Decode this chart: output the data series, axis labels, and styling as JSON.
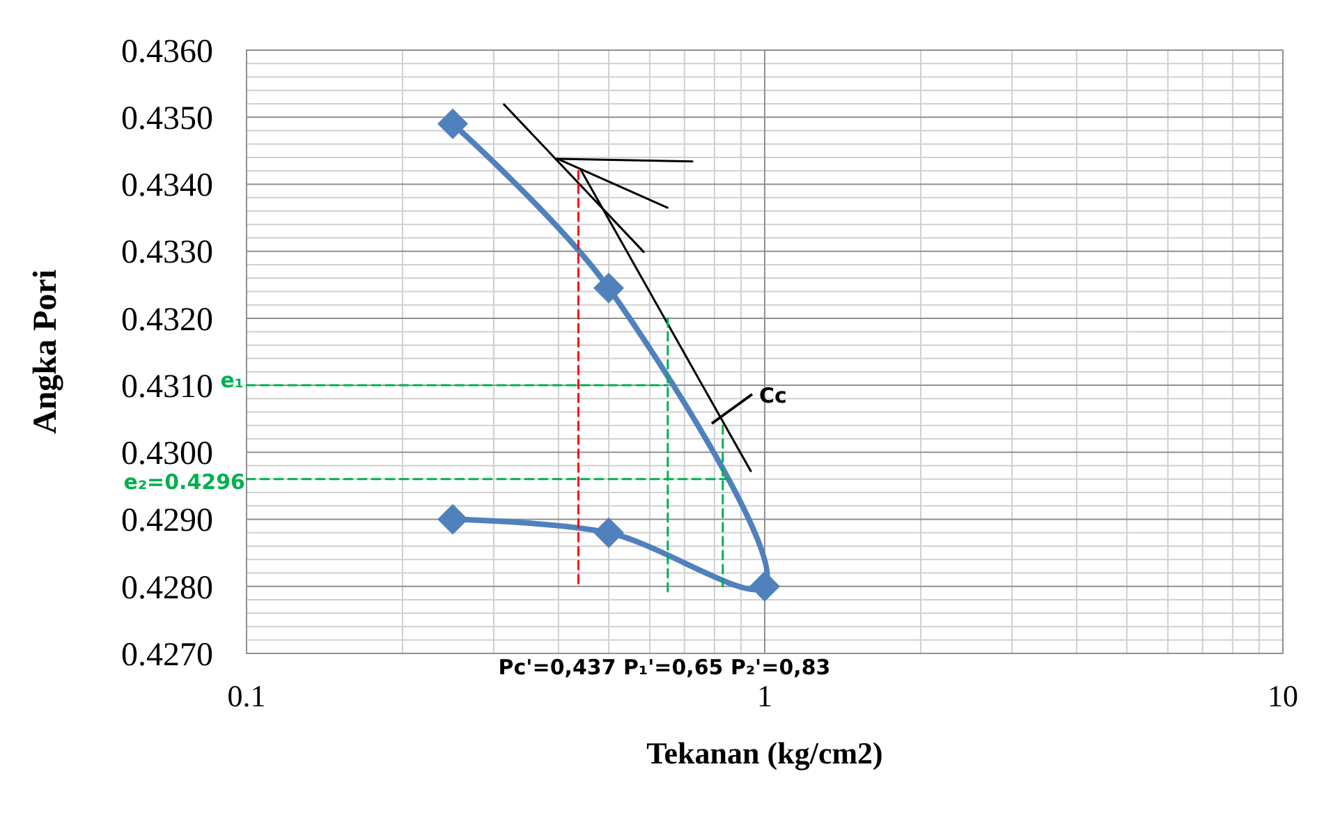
{
  "chart_data": {
    "type": "line",
    "xlabel": "Tekanan (kg/cm2)",
    "ylabel": "Angka Pori",
    "log": "x",
    "grid": true,
    "xlim": [
      0.1,
      10
    ],
    "xticks": [
      0.1,
      1,
      10
    ],
    "ylim": [
      0.427,
      0.436
    ],
    "yticks": [
      {
        "value": 0.427,
        "label": "0.4270"
      },
      {
        "value": 0.428,
        "label": "0.4280"
      },
      {
        "value": 0.429,
        "label": "0.4290"
      },
      {
        "value": 0.43,
        "label": "0.4300"
      },
      {
        "value": 0.431,
        "label": "0.4310"
      },
      {
        "value": 0.432,
        "label": "0.4320"
      },
      {
        "value": 0.433,
        "label": "0.4330"
      },
      {
        "value": 0.434,
        "label": "0.4340"
      },
      {
        "value": 0.435,
        "label": "0.4350"
      },
      {
        "value": 0.436,
        "label": "0.4360"
      }
    ],
    "series": [
      {
        "color": "#4f81bd",
        "x": [
          0.25,
          0.5,
          1,
          0.5,
          0.25
        ],
        "values": [
          0.4349,
          0.43245,
          0.428,
          0.4288,
          0.429
        ],
        "marker": "diamond",
        "line_style": "solid"
      },
      {
        "color": "#000000",
        "x": [
          0.314,
          0.584
        ],
        "values": [
          0.43519,
          0.43299
        ],
        "marker": "none",
        "line_style": "solid"
      },
      {
        "color": "#000000",
        "x": [
          0.398,
          0.725
        ],
        "values": [
          0.43438,
          0.43434
        ],
        "marker": "none",
        "line_style": "solid"
      },
      {
        "color": "#000000",
        "x": [
          0.398,
          0.649
        ],
        "values": [
          0.43438,
          0.43365
        ],
        "marker": "none",
        "line_style": "solid"
      },
      {
        "color": "#000000",
        "x": [
          0.442,
          0.94
        ],
        "values": [
          0.43421,
          0.42972
        ],
        "marker": "none",
        "line_style": "solid"
      },
      {
        "color": "#ff0000",
        "x": [
          0.437,
          0.437
        ],
        "values": [
          0.4342,
          0.428
        ],
        "marker": "none",
        "line_style": "dashed"
      },
      {
        "color": "#00b050",
        "x": [
          0.65,
          0.65
        ],
        "values": [
          0.432,
          0.4279
        ],
        "marker": "none",
        "line_style": "dashed"
      },
      {
        "color": "#00b050",
        "x": [
          0.83,
          0.83
        ],
        "values": [
          0.4304,
          0.428
        ],
        "marker": "none",
        "line_style": "dashed"
      },
      {
        "color": "#00b050",
        "x": [
          0.1,
          0.65
        ],
        "values": [
          0.431,
          0.431
        ],
        "marker": "none",
        "line_style": "dashed"
      },
      {
        "color": "#00b050",
        "x": [
          0.1,
          0.85
        ],
        "values": [
          0.4296,
          0.4296
        ],
        "marker": "none",
        "line_style": "dashed"
      }
    ],
    "annotations": [
      "e₁",
      "e₂=0.4296",
      "Pc'=0,437 P₁'=0,65 P₂'=0,83",
      "Cc"
    ]
  }
}
